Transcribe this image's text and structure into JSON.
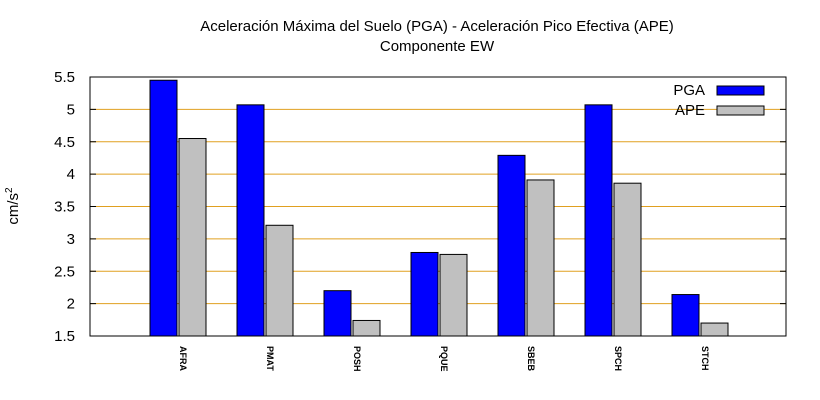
{
  "chart_data": {
    "type": "bar",
    "title": "Aceleración Máxima del Suelo (PGA) -  Aceleración Pico Efectiva (APE)",
    "subtitle": "Componente EW",
    "xlabel": "",
    "ylabel": "cm/s",
    "ylabel_superscript": "2",
    "ylim": [
      1.5,
      5.5
    ],
    "yticks": [
      1.5,
      2,
      2.5,
      3,
      3.5,
      4,
      4.5,
      5,
      5.5
    ],
    "grid": true,
    "legend_position": "top-right",
    "categories": [
      "AFRA",
      "PMAT",
      "POSH",
      "PQUE",
      "SBEB",
      "SPCH",
      "STCH"
    ],
    "series": [
      {
        "name": "PGA",
        "color": "#0000ff",
        "values": [
          5.45,
          5.07,
          2.2,
          2.79,
          4.29,
          5.07,
          2.14
        ]
      },
      {
        "name": "APE",
        "color": "#c0c0c0",
        "values": [
          4.55,
          3.21,
          1.74,
          2.76,
          3.91,
          3.86,
          1.7
        ]
      }
    ],
    "grid_color": "#e0a020"
  }
}
